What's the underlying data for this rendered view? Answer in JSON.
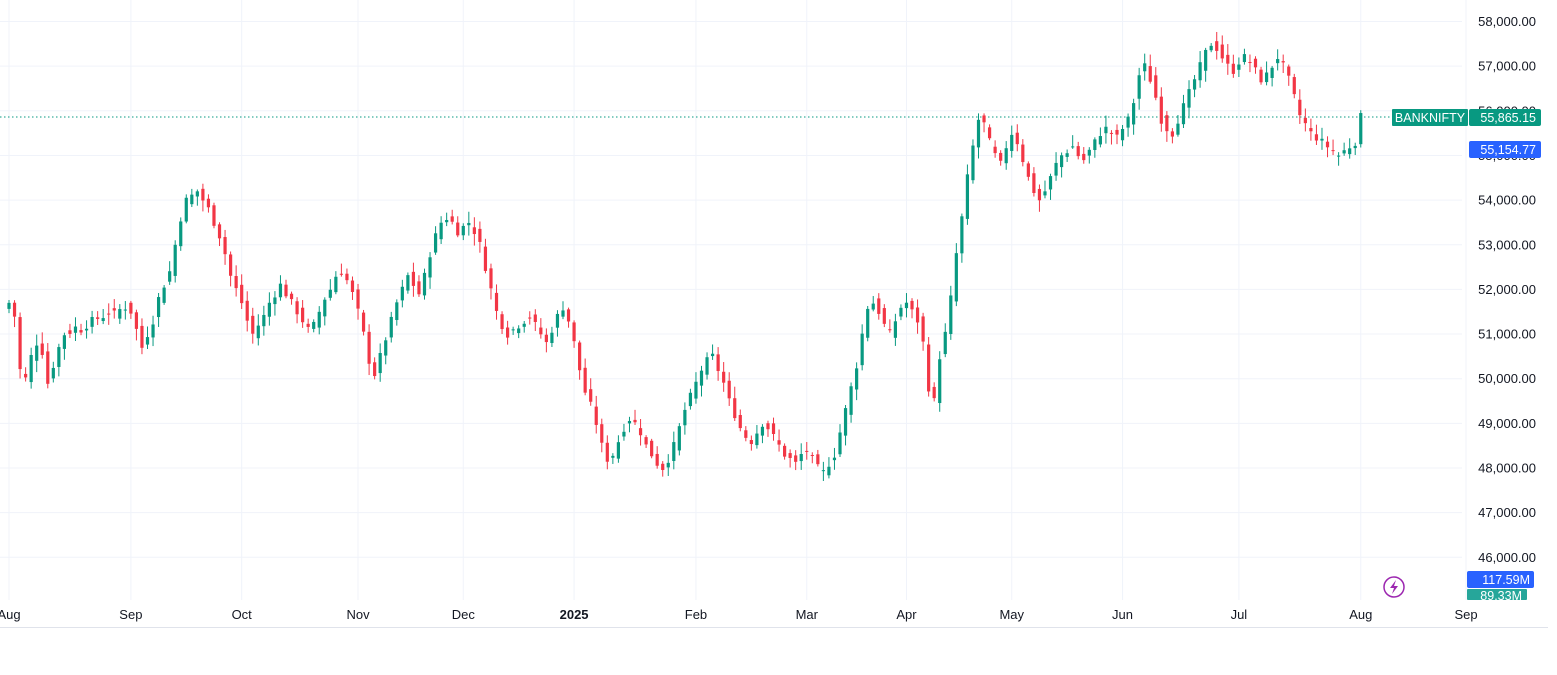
{
  "chart_data": {
    "type": "candlestick",
    "symbol": "BANKNIFTY",
    "last_price": "55,865.15",
    "secondary_price": "55,154.77",
    "volume_labels": [
      "117.59M",
      "89.33M"
    ],
    "y_ticks": [
      "58,000.00",
      "57,000.00",
      "56,000.00",
      "55,000.00",
      "54,000.00",
      "53,000.00",
      "52,000.00",
      "51,000.00",
      "50,000.00",
      "49,000.00",
      "48,000.00",
      "47,000.00",
      "46,000.00"
    ],
    "y_tick_values": [
      58000,
      57000,
      56000,
      55000,
      54000,
      53000,
      52000,
      51000,
      50000,
      49000,
      48000,
      47000,
      46000
    ],
    "ylim": [
      45400,
      58200
    ],
    "x_ticks": [
      {
        "label": "Aug",
        "idx": 0
      },
      {
        "label": "Sep",
        "idx": 22
      },
      {
        "label": "Oct",
        "idx": 42
      },
      {
        "label": "Nov",
        "idx": 63
      },
      {
        "label": "Dec",
        "idx": 82
      },
      {
        "label": "2025",
        "idx": 102,
        "bold": true
      },
      {
        "label": "Feb",
        "idx": 124
      },
      {
        "label": "Mar",
        "idx": 144
      },
      {
        "label": "Apr",
        "idx": 162
      },
      {
        "label": "May",
        "idx": 181
      },
      {
        "label": "Jun",
        "idx": 201
      },
      {
        "label": "Jul",
        "idx": 222
      },
      {
        "label": "Aug",
        "idx": 244
      },
      {
        "label": "Sep",
        "idx": 263
      }
    ],
    "close_path": [
      51700,
      51400,
      50200,
      50000,
      50500,
      50800,
      50600,
      49900,
      50300,
      50700,
      51000,
      51050,
      51150,
      51100,
      51200,
      51300,
      51350,
      51400,
      51500,
      51450,
      51550,
      51600,
      51500,
      51100,
      50700,
      51000,
      51300,
      51800,
      52100,
      52400,
      53000,
      53600,
      54000,
      54100,
      54200,
      54000,
      53800,
      53500,
      53200,
      52800,
      52300,
      52000,
      51700,
      51300,
      51000,
      51200,
      51400,
      51700,
      51900,
      52100,
      51900,
      51700,
      51500,
      51300,
      51100,
      51200,
      51500,
      51800,
      52000,
      52300,
      52400,
      52200,
      51900,
      51500,
      51000,
      50400,
      50100,
      50500,
      50900,
      51300,
      51700,
      52000,
      52300,
      52100,
      51900,
      52300,
      52800,
      53200,
      53500,
      53600,
      53500,
      53300,
      53400,
      53500,
      53300,
      53000,
      52500,
      52000,
      51500,
      51200,
      51000,
      51100,
      51200,
      51300,
      51400,
      51200,
      51000,
      50800,
      51100,
      51400,
      51600,
      51300,
      50800,
      50200,
      49700,
      49400,
      49000,
      48500,
      48200,
      48300,
      48600,
      48900,
      49100,
      49000,
      48800,
      48500,
      48300,
      48100,
      48000,
      48200,
      48500,
      48900,
      49300,
      49600,
      49900,
      50200,
      50400,
      50500,
      50200,
      49900,
      49500,
      49200,
      48900,
      48700,
      48600,
      48800,
      49000,
      48900,
      48700,
      48500,
      48300,
      48200,
      48100,
      48300,
      48400,
      48200,
      48000,
      47900,
      48100,
      48300,
      48800,
      49300,
      49800,
      50300,
      51000,
      51600,
      51700,
      51500,
      51200,
      51000,
      51300,
      51600,
      51700,
      51500,
      51300,
      50800,
      49800,
      49500,
      50500,
      51000,
      51800,
      52800,
      53600,
      54500,
      55200,
      55800,
      55700,
      55300,
      55000,
      54800,
      55200,
      55500,
      55300,
      54900,
      54500,
      54200,
      54000,
      54200,
      54500,
      54800,
      55000,
      55100,
      55200,
      55000,
      54900,
      55100,
      55300,
      55500,
      55600,
      55500,
      55400,
      55600,
      55800,
      56200,
      56800,
      57000,
      56700,
      56300,
      55800,
      55600,
      55500,
      55800,
      56100,
      56400,
      56700,
      57000,
      57300,
      57500,
      57400,
      57200,
      57000,
      56900,
      57100,
      57200,
      57100,
      56900,
      56700,
      56800,
      57000,
      57200,
      57000,
      56700,
      56300,
      55900,
      55700,
      55500,
      55400,
      55300,
      55200,
      55100,
      55000,
      55100,
      55200,
      55300,
      55865
    ]
  }
}
